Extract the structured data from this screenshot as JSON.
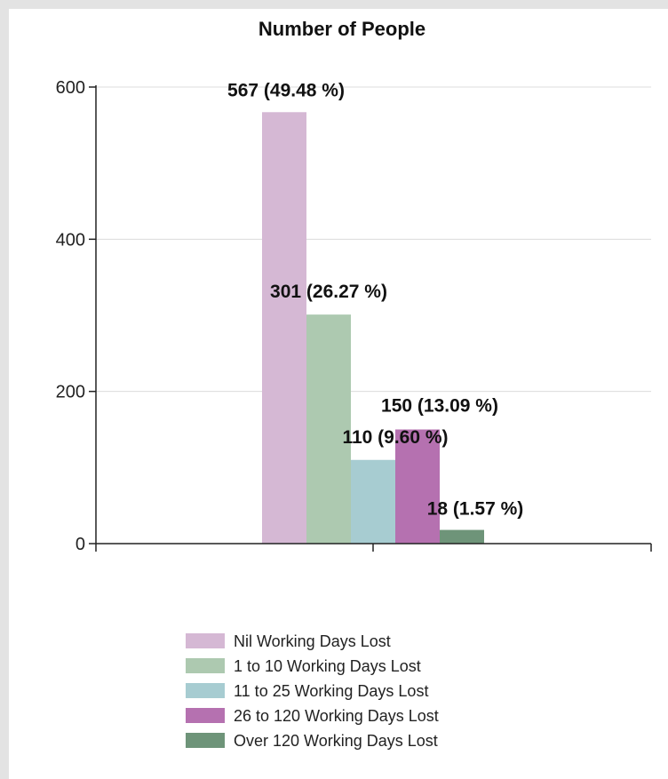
{
  "chart_data": {
    "type": "bar",
    "title": "Number of People",
    "xlabel": "",
    "ylabel": "",
    "ylim": [
      0,
      600
    ],
    "yticks": [
      0,
      200,
      400,
      600
    ],
    "grid": true,
    "legend_position": "bottom",
    "series": [
      {
        "name": "Nil Working Days Lost",
        "value": 567,
        "label": "567 (49.48 %)",
        "color": "#d5b8d4"
      },
      {
        "name": "1 to 10 Working Days Lost",
        "value": 301,
        "label": "301 (26.27 %)",
        "color": "#adc9b0"
      },
      {
        "name": "11 to 25 Working Days Lost",
        "value": 110,
        "label": "110 (9.60 %)",
        "color": "#a7ccd1"
      },
      {
        "name": "26 to 120 Working Days Lost",
        "value": 150,
        "label": "150 (13.09 %)",
        "color": "#b571b0"
      },
      {
        "name": "Over 120 Working Days Lost",
        "value": 18,
        "label": "18 (1.57 %)",
        "color": "#6e9479"
      }
    ]
  }
}
